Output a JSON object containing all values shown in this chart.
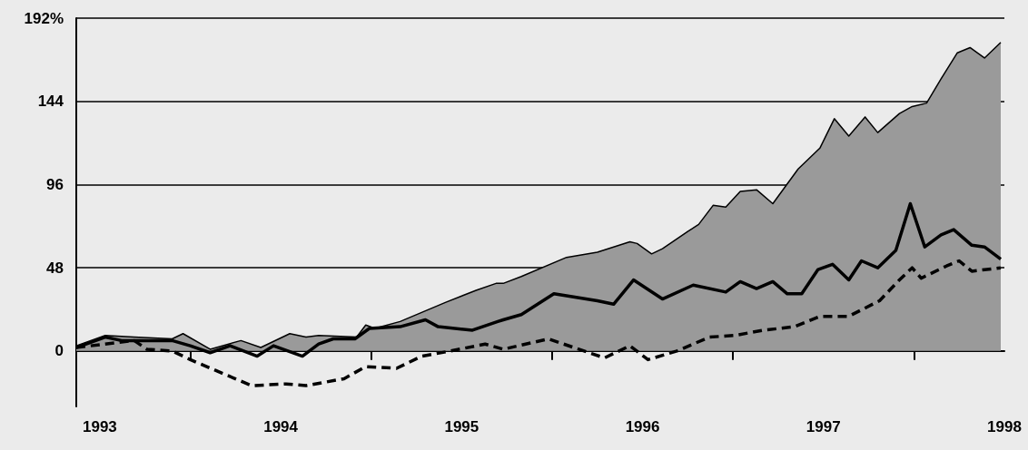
{
  "chart_data": {
    "type": "area",
    "xlim": [
      1993.37,
      1998.5
    ],
    "xticks": [
      {
        "value": 1994,
        "label": null
      },
      {
        "value": 1995,
        "label": null
      },
      {
        "value": 1996,
        "label": null
      },
      {
        "value": 1997,
        "label": null
      },
      {
        "value": 1998,
        "label": null
      },
      {
        "value": 1993.5,
        "label": "1993"
      },
      {
        "value": 1994.5,
        "label": "1994"
      },
      {
        "value": 1995.5,
        "label": "1995"
      },
      {
        "value": 1996.5,
        "label": "1996"
      },
      {
        "value": 1997.5,
        "label": "1997"
      },
      {
        "value": 1998.5,
        "label": "1998"
      }
    ],
    "ylim": [
      -32,
      192
    ],
    "yticks": [
      0,
      48,
      96,
      144,
      {
        "value": 192,
        "label": "192%"
      }
    ],
    "grid": "y",
    "marker": "none",
    "series": [
      {
        "color": "#9a9a9a",
        "line_style": "solid",
        "x": [
          1993.37,
          1993.53,
          1993.69,
          1993.9,
          1993.96,
          1994.11,
          1994.28,
          1994.39,
          1994.55,
          1994.64,
          1994.71,
          1994.92,
          1994.97,
          1995.02,
          1995.16,
          1995.41,
          1995.58,
          1995.69,
          1995.73,
          1995.83,
          1996.08,
          1996.25,
          1996.43,
          1996.47,
          1996.55,
          1996.61,
          1996.75,
          1996.81,
          1996.89,
          1996.96,
          1997.04,
          1997.13,
          1997.22,
          1997.36,
          1997.48,
          1997.56,
          1997.64,
          1997.73,
          1997.8,
          1997.92,
          1997.99,
          1998.07,
          1998.15,
          1998.24,
          1998.31,
          1998.39,
          1998.48
        ],
        "values": [
          3,
          9,
          8,
          7,
          10,
          1,
          6,
          2,
          10,
          8,
          9,
          8,
          15,
          13,
          17,
          28,
          35,
          39,
          39,
          43,
          54,
          57,
          63,
          62,
          56,
          59,
          69,
          73,
          84,
          83,
          92,
          93,
          85,
          105,
          117,
          134,
          124,
          135,
          126,
          137,
          141,
          143,
          157,
          172,
          175,
          169,
          178
        ]
      },
      {
        "type": "line",
        "color": "#000000",
        "line_style": "solid",
        "x": [
          1993.37,
          1993.53,
          1993.62,
          1993.9,
          1994.0,
          1994.11,
          1994.22,
          1994.37,
          1994.46,
          1994.62,
          1994.71,
          1994.79,
          1994.91,
          1994.99,
          1995.16,
          1995.3,
          1995.37,
          1995.56,
          1995.7,
          1995.73,
          1995.83,
          1996.01,
          1996.25,
          1996.34,
          1996.45,
          1996.61,
          1996.78,
          1996.96,
          1997.04,
          1997.13,
          1997.22,
          1997.3,
          1997.38,
          1997.47,
          1997.55,
          1997.64,
          1997.71,
          1997.8,
          1997.9,
          1997.98,
          1998.06,
          1998.15,
          1998.22,
          1998.32,
          1998.39,
          1998.48
        ],
        "values": [
          2,
          8,
          6,
          6,
          3,
          -1,
          3,
          -3,
          3,
          -3,
          4,
          7,
          7,
          13,
          14,
          18,
          14,
          12,
          17,
          18,
          21,
          33,
          29,
          27,
          41,
          30,
          38,
          34,
          40,
          36,
          40,
          33,
          33,
          47,
          50,
          41,
          52,
          48,
          58,
          85,
          60,
          67,
          70,
          61,
          60,
          53
        ]
      },
      {
        "type": "line",
        "color": "#000000",
        "line_style": "dashed",
        "x": [
          1993.37,
          1993.69,
          1993.76,
          1993.9,
          1994.0,
          1994.18,
          1994.34,
          1994.53,
          1994.64,
          1994.85,
          1994.97,
          1995.14,
          1995.28,
          1995.44,
          1995.63,
          1995.73,
          1995.98,
          1996.12,
          1996.29,
          1996.43,
          1996.53,
          1996.69,
          1996.87,
          1997.01,
          1997.17,
          1997.34,
          1997.48,
          1997.64,
          1997.81,
          1997.92,
          1997.99,
          1998.04,
          1998.18,
          1998.25,
          1998.32,
          1998.48
        ],
        "values": [
          2,
          6,
          1,
          0,
          -5,
          -13,
          -20,
          -19,
          -20,
          -16,
          -9,
          -10,
          -3,
          0,
          4,
          1,
          7,
          2,
          -4,
          3,
          -5,
          0,
          8,
          9,
          12,
          14,
          20,
          20,
          29,
          41,
          48,
          42,
          49,
          52,
          46,
          48
        ]
      }
    ]
  }
}
